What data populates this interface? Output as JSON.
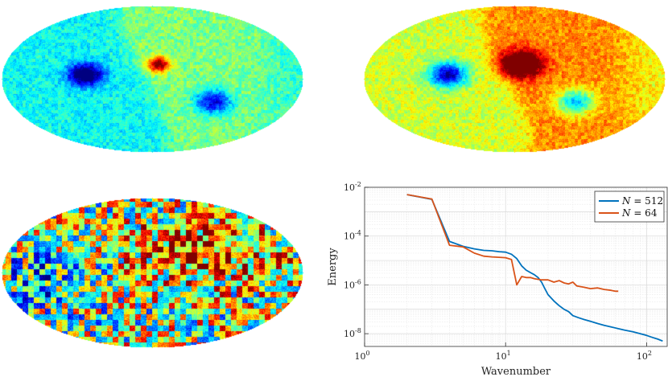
{
  "maps": [
    {
      "id": "map-top-left",
      "colormap": "jet",
      "background_level": 0.42,
      "features": [
        {
          "kind": "cold-blob",
          "strength": "strong"
        },
        {
          "kind": "warm-blob",
          "strength": "strong"
        },
        {
          "kind": "cold-blob",
          "strength": "medium"
        }
      ]
    },
    {
      "id": "map-top-right",
      "colormap": "jet",
      "background_level": 0.62,
      "features": [
        {
          "kind": "cold-blob",
          "strength": "strong"
        },
        {
          "kind": "warm-blob",
          "strength": "strong"
        },
        {
          "kind": "cold-blob",
          "strength": "medium"
        }
      ]
    },
    {
      "id": "map-bottom-left",
      "colormap": "jet",
      "background_level": 0.55,
      "features": [
        {
          "kind": "cold-region",
          "strength": "medium"
        },
        {
          "kind": "warm-region",
          "strength": "medium"
        }
      ]
    }
  ],
  "chart_data": {
    "type": "line",
    "xscale": "log",
    "yscale": "log",
    "xlim": [
      1,
      140
    ],
    "ylim": [
      3e-09,
      0.01
    ],
    "xlabel": "Wavenumber",
    "ylabel": "Energy",
    "x_ticks": [
      {
        "value": 1,
        "base": "10",
        "exp": "0"
      },
      {
        "value": 10,
        "base": "10",
        "exp": "1"
      },
      {
        "value": 100,
        "base": "10",
        "exp": "2"
      }
    ],
    "y_ticks": [
      {
        "value": 1e-08,
        "base": "10",
        "exp": "-8"
      },
      {
        "value": 1e-06,
        "base": "10",
        "exp": "-6"
      },
      {
        "value": 0.0001,
        "base": "10",
        "exp": "-4"
      },
      {
        "value": 0.01,
        "base": "10",
        "exp": "-2"
      }
    ],
    "legend_position": "top-right",
    "series": [
      {
        "name": "N = 512",
        "legend_var": "N",
        "legend_eq": "= 512",
        "color": "#0072BD",
        "x": [
          2,
          3,
          4,
          5,
          6,
          7,
          8,
          9,
          10,
          11,
          12,
          13,
          14,
          15,
          16,
          17,
          18,
          19,
          20,
          22,
          24,
          26,
          28,
          30,
          33,
          36,
          40,
          45,
          50,
          56,
          63,
          70,
          80,
          90,
          100,
          110,
          120,
          130
        ],
        "y": [
          0.005,
          0.0032,
          6e-05,
          3.8e-05,
          3e-05,
          2.6e-05,
          2.5e-05,
          2.3e-05,
          2.2e-05,
          1.8e-05,
          1.2e-05,
          6e-06,
          4e-06,
          3.2e-06,
          2.6e-06,
          2e-06,
          1.3e-06,
          7e-07,
          4e-07,
          2.2e-07,
          1.4e-07,
          1e-07,
          8e-08,
          5.5e-08,
          4.5e-08,
          3.8e-08,
          3.2e-08,
          2.6e-08,
          2.2e-08,
          1.9e-08,
          1.6e-08,
          1.4e-08,
          1.2e-08,
          1e-08,
          8.5e-09,
          7e-09,
          6e-09,
          5e-09
        ]
      },
      {
        "name": "N = 64",
        "legend_var": "N",
        "legend_eq": "= 64",
        "color": "#D95319",
        "x": [
          2,
          3,
          4,
          5,
          6,
          7,
          8,
          9,
          10,
          11,
          12,
          13,
          14,
          15,
          16,
          18,
          20,
          22,
          24,
          26,
          28,
          30,
          32,
          36,
          40,
          45,
          50,
          56,
          60,
          63
        ],
        "y": [
          0.005,
          0.0033,
          4.2e-05,
          3.6e-05,
          2e-05,
          1.5e-05,
          1.4e-05,
          1.35e-05,
          1.3e-05,
          1.1e-05,
          1e-06,
          2.2e-06,
          2e-06,
          2e-06,
          1.8e-06,
          1.6e-06,
          1.6e-06,
          1.3e-06,
          1.5e-06,
          1.2e-06,
          1.1e-06,
          1.3e-06,
          9e-07,
          8e-07,
          7e-07,
          7.5e-07,
          6.5e-07,
          6e-07,
          5.5e-07,
          5.5e-07
        ]
      }
    ]
  }
}
